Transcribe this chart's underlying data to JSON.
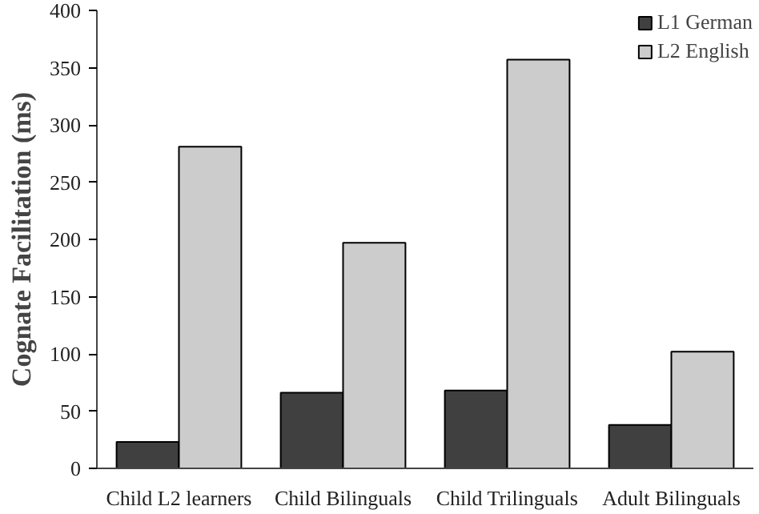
{
  "chart_data": {
    "type": "bar",
    "ylabel": "Cognate Facilitation (ms)",
    "categories": [
      "Child L2 learners",
      "Child Bilinguals",
      "Child Trilinguals",
      "Adult Bilinguals"
    ],
    "series": [
      {
        "name": "L1 German",
        "color": "#404040",
        "values": [
          23,
          66,
          68,
          38
        ]
      },
      {
        "name": "L2 English",
        "color": "#cccccc",
        "values": [
          281,
          197,
          357,
          102
        ]
      }
    ],
    "ylim": [
      0,
      400
    ],
    "yticks": [
      0,
      50,
      100,
      150,
      200,
      250,
      300,
      350,
      400
    ],
    "grid": false,
    "legend": "top right"
  }
}
